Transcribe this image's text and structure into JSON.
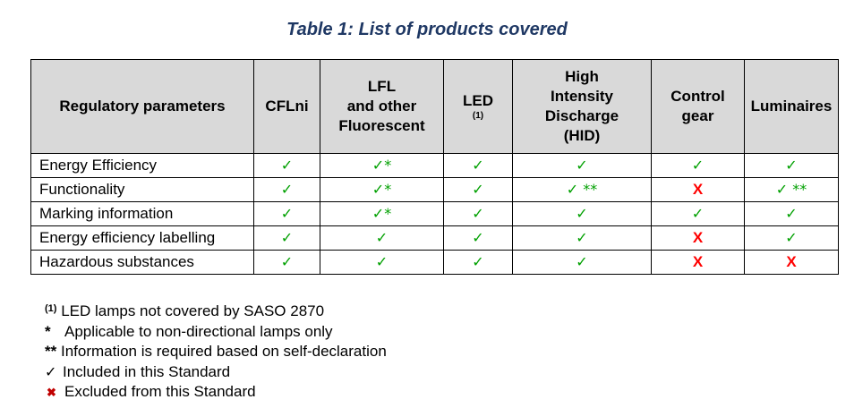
{
  "title": "Table 1: List of products covered",
  "table": {
    "headers": [
      {
        "text": "Regulatory parameters"
      },
      {
        "text": "CFLni"
      },
      {
        "text": "LFL\nand other\nFluorescent"
      },
      {
        "text": "LED",
        "note": "(1)"
      },
      {
        "text": "High\nIntensity\nDischarge\n(HID)"
      },
      {
        "text": "Control\ngear"
      },
      {
        "text": "Luminaires"
      }
    ],
    "rows": [
      {
        "label": "Energy Efficiency",
        "cells": [
          "✓",
          "✓*",
          "✓",
          "✓",
          "✓",
          "✓"
        ]
      },
      {
        "label": "Functionality",
        "cells": [
          "✓",
          "✓*",
          "✓",
          "✓ **",
          "X",
          "✓ **"
        ]
      },
      {
        "label": "Marking information",
        "cells": [
          "✓",
          "✓*",
          "✓",
          "✓",
          "✓",
          "✓"
        ]
      },
      {
        "label": "Energy efficiency labelling",
        "cells": [
          "✓",
          "✓",
          "✓",
          "✓",
          "X",
          "✓"
        ]
      },
      {
        "label": "Hazardous substances",
        "cells": [
          "✓",
          "✓",
          "✓",
          "✓",
          "X",
          "X"
        ]
      }
    ]
  },
  "legend": [
    {
      "symbol": "(1)",
      "text": "LED lamps not covered by SASO 2870"
    },
    {
      "symbol": "*",
      "text": "Applicable to non-directional lamps only"
    },
    {
      "symbol": "**",
      "text": "Information is required based on self-declaration"
    },
    {
      "symbol": "✓",
      "text": "Included in this Standard"
    },
    {
      "symbol": "✖",
      "text": "Excluded from this Standard"
    }
  ],
  "colors": {
    "title": "#1F3864",
    "header_bg": "#D9D9D9",
    "check": "#00A000",
    "cross": "#FF0000"
  }
}
